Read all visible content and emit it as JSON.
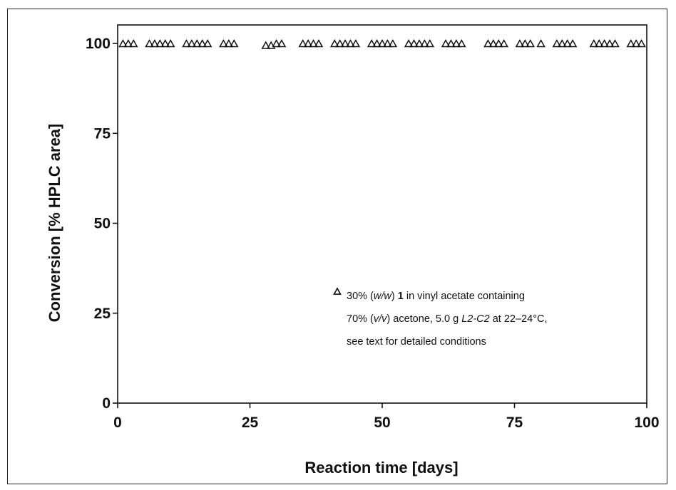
{
  "chart_data": {
    "type": "scatter",
    "xlabel": "Reaction time [days]",
    "ylabel": "Conversion [% HPLC area]",
    "xlim": [
      0,
      100
    ],
    "ylim": [
      0,
      100
    ],
    "xticks": [
      0,
      25,
      50,
      75,
      100
    ],
    "yticks": [
      0,
      25,
      50,
      75,
      100
    ],
    "grid": false,
    "legend_position": "center-right",
    "marker": "open-triangle",
    "color": "#111111",
    "series": [
      {
        "x": [
          1,
          2,
          3,
          6,
          7,
          8,
          9,
          10,
          13,
          14,
          15,
          16,
          17,
          20,
          21,
          22,
          28,
          29,
          30,
          31,
          35,
          36,
          37,
          38,
          41,
          42,
          43,
          44,
          45,
          48,
          49,
          50,
          51,
          52,
          55,
          56,
          57,
          58,
          59,
          62,
          63,
          64,
          65,
          70,
          71,
          72,
          73,
          76,
          77,
          78,
          80,
          83,
          84,
          85,
          86,
          90,
          91,
          92,
          93,
          94,
          97,
          98,
          99
        ],
        "y": [
          100,
          100,
          100,
          100,
          100,
          100,
          100,
          100,
          100,
          100,
          100,
          100,
          100,
          100,
          100,
          100,
          99.5,
          99.5,
          100,
          100,
          100,
          100,
          100,
          100,
          100,
          100,
          100,
          100,
          100,
          100,
          100,
          100,
          100,
          100,
          100,
          100,
          100,
          100,
          100,
          100,
          100,
          100,
          100,
          100,
          100,
          100,
          100,
          100,
          100,
          100,
          100,
          100,
          100,
          100,
          100,
          100,
          100,
          100,
          100,
          100,
          100,
          100,
          100
        ]
      }
    ],
    "legend": {
      "line1_pre": "30% (",
      "line1_ital": "w/w",
      "line1_mid": ") ",
      "line1_bold": "1",
      "line1_post": " in vinyl acetate containing",
      "line2_pre": "70% (",
      "line2_ital": "v/v",
      "line2_mid": ") acetone, 5.0 g ",
      "line2_ital2": "L2-C2",
      "line2_post": " at 22–24°C,",
      "line3": "see text for detailed conditions"
    }
  }
}
